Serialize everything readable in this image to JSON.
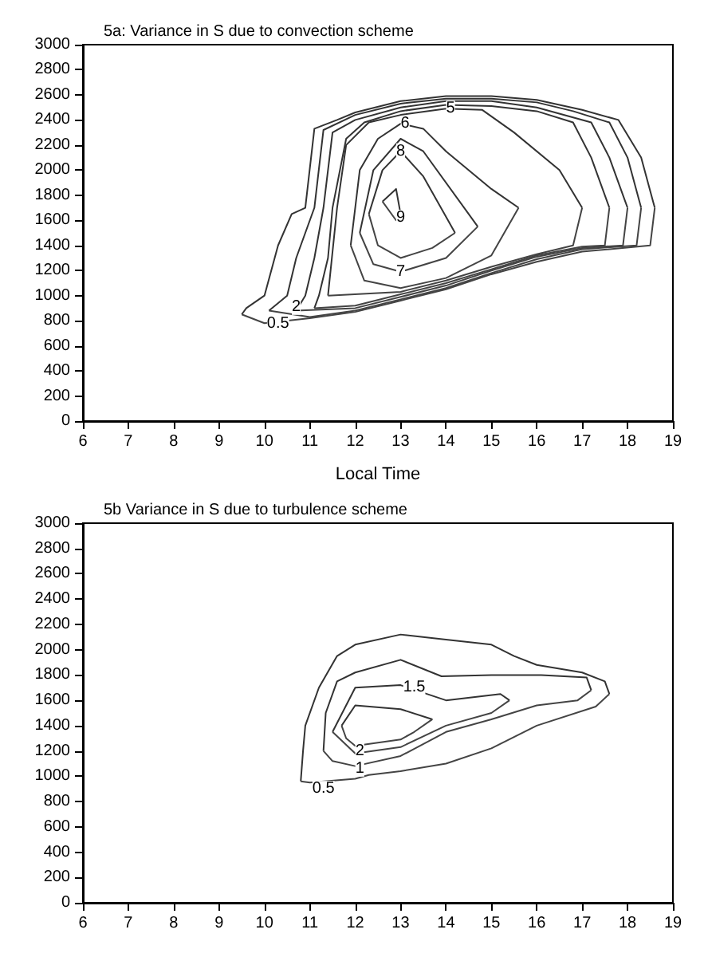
{
  "chart_data": [
    {
      "type": "line",
      "title": "5a: Variance in S due to convection scheme",
      "xlabel": "Local Time",
      "xlim": [
        6,
        19
      ],
      "ylim": [
        0,
        3000
      ],
      "xticks": [
        6,
        7,
        8,
        9,
        10,
        11,
        12,
        13,
        14,
        15,
        16,
        17,
        18,
        19
      ],
      "yticks": [
        0,
        200,
        400,
        600,
        800,
        1000,
        1200,
        1400,
        1600,
        1800,
        2000,
        2200,
        2400,
        2600,
        2800,
        3000
      ],
      "grid": false,
      "marker": "none",
      "line_style": "solid",
      "series": [
        {
          "color": "#333333",
          "x": [
            9.5,
            9.6,
            10,
            10.3,
            10.6,
            10.9,
            11.1,
            11.6,
            12,
            13,
            14,
            15,
            16,
            17,
            17.8,
            18.3,
            18.6
          ],
          "values": [
            850,
            900,
            1000,
            1400,
            1650,
            1700,
            2330,
            2400,
            2460,
            2550,
            2590,
            2590,
            2560,
            2480,
            2400,
            2100,
            1700
          ]
        },
        {
          "color": "#444444",
          "x": [
            9.5,
            10,
            11,
            12,
            13,
            14,
            15,
            16,
            17,
            18.5,
            18.6
          ],
          "values": [
            850,
            780,
            820,
            870,
            960,
            1050,
            1170,
            1270,
            1350,
            1400,
            1700
          ]
        },
        {
          "color": "#333333",
          "x": [
            10.1,
            10.5,
            10.7,
            11.1,
            11.3,
            12,
            13,
            14,
            15,
            16,
            16.8,
            17.6,
            18,
            18.3
          ],
          "values": [
            880,
            1000,
            1300,
            1700,
            2320,
            2440,
            2530,
            2570,
            2570,
            2540,
            2470,
            2380,
            2100,
            1700
          ]
        },
        {
          "color": "#444444",
          "x": [
            10.1,
            11,
            12,
            13,
            14,
            15,
            16,
            17,
            18.2,
            18.3
          ],
          "values": [
            880,
            830,
            880,
            970,
            1060,
            1180,
            1290,
            1370,
            1400,
            1700
          ]
        },
        {
          "color": "#333333",
          "x": [
            10.7,
            10.9,
            11.1,
            11.3,
            11.5,
            12,
            13,
            14,
            15,
            16,
            17.2,
            17.6,
            18
          ],
          "values": [
            880,
            1000,
            1300,
            1700,
            2300,
            2400,
            2500,
            2550,
            2550,
            2500,
            2380,
            2100,
            1700
          ]
        },
        {
          "color": "#444444",
          "x": [
            10.7,
            12,
            13,
            14,
            15,
            16,
            17,
            17.9,
            18
          ],
          "values": [
            880,
            900,
            990,
            1080,
            1200,
            1310,
            1380,
            1400,
            1700
          ]
        },
        {
          "color": "#333333",
          "x": [
            11.1,
            11.2,
            11.4,
            11.5,
            11.8,
            12.2,
            13,
            14,
            15,
            16,
            16.8,
            17.2,
            17.6
          ],
          "values": [
            900,
            1000,
            1300,
            1700,
            2250,
            2380,
            2470,
            2520,
            2510,
            2470,
            2380,
            2100,
            1700
          ]
        },
        {
          "color": "#444444",
          "x": [
            11.1,
            12,
            13,
            14,
            15,
            16,
            17,
            17.5,
            17.6
          ],
          "values": [
            900,
            920,
            1010,
            1100,
            1210,
            1320,
            1390,
            1400,
            1700
          ]
        },
        {
          "color": "#333333",
          "x": [
            11.4,
            11.6,
            11.8,
            12.3,
            13,
            14,
            14.8,
            15.5,
            16.5,
            17
          ],
          "values": [
            1000,
            1700,
            2200,
            2380,
            2440,
            2490,
            2480,
            2300,
            2000,
            1700
          ]
        },
        {
          "color": "#444444",
          "x": [
            11.4,
            13,
            14,
            15,
            16,
            16.8,
            17
          ],
          "values": [
            1000,
            1030,
            1120,
            1230,
            1330,
            1400,
            1700
          ]
        },
        {
          "color": "#333333",
          "x": [
            11.9,
            12.1,
            12.5,
            13,
            13.5,
            14,
            15,
            15.6
          ],
          "values": [
            1400,
            2000,
            2250,
            2370,
            2330,
            2150,
            1850,
            1700
          ]
        },
        {
          "color": "#444444",
          "x": [
            11.9,
            12.2,
            13,
            14,
            15,
            15.6
          ],
          "values": [
            1400,
            1120,
            1060,
            1140,
            1320,
            1700
          ]
        },
        {
          "color": "#333333",
          "x": [
            12.1,
            12.4,
            13,
            13.5,
            14.7
          ],
          "values": [
            1500,
            2000,
            2250,
            2150,
            1550
          ]
        },
        {
          "color": "#444444",
          "x": [
            12.1,
            12.4,
            13,
            14,
            14.7
          ],
          "values": [
            1500,
            1250,
            1190,
            1300,
            1550
          ]
        },
        {
          "color": "#333333",
          "x": [
            12.3,
            12.6,
            13,
            13.5,
            14.2
          ],
          "values": [
            1650,
            2000,
            2150,
            1950,
            1500
          ]
        },
        {
          "color": "#444444",
          "x": [
            12.3,
            12.5,
            13,
            13.7,
            14.2
          ],
          "values": [
            1650,
            1400,
            1300,
            1380,
            1500
          ]
        },
        {
          "color": "#333333",
          "x": [
            12.6,
            12.9,
            13
          ],
          "values": [
            1750,
            1850,
            1650
          ]
        },
        {
          "color": "#444444",
          "x": [
            12.6,
            12.9,
            13
          ],
          "values": [
            1750,
            1600,
            1650
          ]
        }
      ],
      "annotations": [
        {
          "text": "0.5",
          "x": 10.3,
          "y": 775
        },
        {
          "text": "2",
          "x": 10.7,
          "y": 910
        },
        {
          "text": "5",
          "x": 14.1,
          "y": 2490
        },
        {
          "text": "6",
          "x": 13.1,
          "y": 2370
        },
        {
          "text": "8",
          "x": 13,
          "y": 2150
        },
        {
          "text": "9",
          "x": 13,
          "y": 1620
        },
        {
          "text": "7",
          "x": 13,
          "y": 1190
        }
      ]
    },
    {
      "type": "line",
      "title": "5b Variance in S due to turbulence scheme",
      "xlim": [
        6,
        19
      ],
      "ylim": [
        0,
        3000
      ],
      "xticks": [
        6,
        7,
        8,
        9,
        10,
        11,
        12,
        13,
        14,
        15,
        16,
        17,
        18,
        19
      ],
      "yticks": [
        0,
        200,
        400,
        600,
        800,
        1000,
        1200,
        1400,
        1600,
        1800,
        2000,
        2200,
        2400,
        2600,
        2800,
        3000
      ],
      "grid": false,
      "marker": "none",
      "line_style": "solid",
      "series": [
        {
          "color": "#333333",
          "x": [
            10.8,
            10.85,
            10.9,
            11.2,
            11.6,
            12,
            13,
            14,
            15,
            15.5,
            16,
            17,
            17.5,
            17.6
          ],
          "values": [
            960,
            1200,
            1400,
            1700,
            1950,
            2040,
            2120,
            2080,
            2040,
            1950,
            1880,
            1820,
            1750,
            1650
          ]
        },
        {
          "color": "#444444",
          "x": [
            10.8,
            11,
            12,
            12.3,
            13,
            14,
            15,
            16,
            17.3,
            17.6
          ],
          "values": [
            960,
            950,
            980,
            1010,
            1040,
            1100,
            1220,
            1400,
            1550,
            1650
          ]
        },
        {
          "color": "#333333",
          "x": [
            11.3,
            11.35,
            11.6,
            12,
            13,
            13.9,
            15,
            16.1,
            17.1,
            17.2
          ],
          "values": [
            1200,
            1500,
            1750,
            1820,
            1920,
            1790,
            1800,
            1800,
            1780,
            1680
          ]
        },
        {
          "color": "#444444",
          "x": [
            11.3,
            11.5,
            12,
            13,
            14,
            15,
            16,
            16.9,
            17.2
          ],
          "values": [
            1200,
            1120,
            1080,
            1160,
            1350,
            1450,
            1560,
            1600,
            1680
          ]
        },
        {
          "color": "#333333",
          "x": [
            11.5,
            12,
            13,
            14,
            15.2,
            15.4
          ],
          "values": [
            1350,
            1700,
            1720,
            1600,
            1650,
            1600
          ]
        },
        {
          "color": "#444444",
          "x": [
            11.5,
            12,
            13,
            14,
            15,
            15.4
          ],
          "values": [
            1350,
            1180,
            1230,
            1400,
            1500,
            1600
          ]
        },
        {
          "color": "#333333",
          "x": [
            11.7,
            12,
            13,
            13.7
          ],
          "values": [
            1400,
            1560,
            1530,
            1450
          ]
        },
        {
          "color": "#444444",
          "x": [
            11.7,
            11.8,
            12,
            13,
            13.3,
            13.7
          ],
          "values": [
            1400,
            1300,
            1240,
            1290,
            1350,
            1450
          ]
        }
      ],
      "annotations": [
        {
          "text": "0.5",
          "x": 11.3,
          "y": 900
        },
        {
          "text": "1",
          "x": 12.1,
          "y": 1060
        },
        {
          "text": "1.5",
          "x": 13.3,
          "y": 1700
        },
        {
          "text": "2",
          "x": 12.1,
          "y": 1200
        }
      ]
    }
  ]
}
